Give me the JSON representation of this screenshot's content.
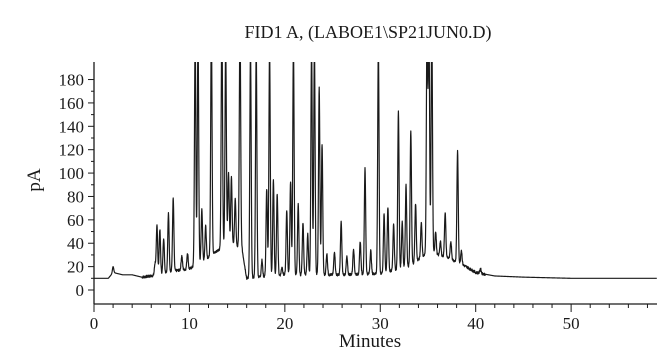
{
  "chart_data": {
    "type": "line",
    "title": "FID1 A, (LABOE1\\SP21JUN0.D)",
    "xlabel": "Minutes",
    "ylabel": "pA",
    "xlim": [
      0,
      59
    ],
    "ylim": [
      0,
      195
    ],
    "x_ticks": [
      0,
      10,
      20,
      30,
      40,
      50
    ],
    "y_ticks": [
      0,
      20,
      40,
      60,
      80,
      100,
      120,
      140,
      160,
      180
    ],
    "grid": false,
    "legend": "none",
    "line_color": "#1a1a1a",
    "series": [
      {
        "baseline": [
          [
            0,
            10
          ],
          [
            1.5,
            10
          ],
          [
            2,
            15
          ],
          [
            3,
            13
          ],
          [
            4,
            13
          ],
          [
            5,
            11
          ],
          [
            6,
            12
          ],
          [
            8,
            16
          ],
          [
            10,
            18
          ],
          [
            12,
            28
          ],
          [
            14,
            40
          ],
          [
            15.5,
            36
          ],
          [
            16,
            10
          ],
          [
            17,
            11
          ],
          [
            20,
            13
          ],
          [
            25,
            13
          ],
          [
            30,
            14
          ],
          [
            33,
            20
          ],
          [
            35,
            32
          ],
          [
            37,
            28
          ],
          [
            39,
            20
          ],
          [
            40,
            15
          ],
          [
            42,
            12
          ],
          [
            45,
            11
          ],
          [
            50,
            10
          ],
          [
            59,
            10
          ]
        ],
        "peaks": [
          [
            2.0,
            5
          ],
          [
            6.4,
            10
          ],
          [
            6.6,
            42
          ],
          [
            6.9,
            38
          ],
          [
            7.3,
            30
          ],
          [
            7.8,
            50
          ],
          [
            8.3,
            62
          ],
          [
            9.2,
            12
          ],
          [
            9.8,
            14
          ],
          [
            10.6,
            195
          ],
          [
            10.9,
            195
          ],
          [
            11.3,
            45
          ],
          [
            11.7,
            28
          ],
          [
            12.3,
            195
          ],
          [
            13.4,
            195
          ],
          [
            13.8,
            170
          ],
          [
            14.1,
            60
          ],
          [
            14.4,
            58
          ],
          [
            14.8,
            40
          ],
          [
            15.3,
            195
          ],
          [
            16.4,
            195
          ],
          [
            17.0,
            195
          ],
          [
            17.6,
            14
          ],
          [
            18.1,
            75
          ],
          [
            18.4,
            195
          ],
          [
            18.8,
            82
          ],
          [
            19.2,
            70
          ],
          [
            19.7,
            7
          ],
          [
            20.2,
            55
          ],
          [
            20.6,
            80
          ],
          [
            20.9,
            195
          ],
          [
            21.4,
            60
          ],
          [
            21.9,
            45
          ],
          [
            22.4,
            35
          ],
          [
            22.8,
            195
          ],
          [
            23.1,
            195
          ],
          [
            23.6,
            160
          ],
          [
            23.9,
            112
          ],
          [
            24.4,
            18
          ],
          [
            25.2,
            20
          ],
          [
            25.9,
            45
          ],
          [
            26.5,
            15
          ],
          [
            27.2,
            22
          ],
          [
            27.9,
            28
          ],
          [
            28.4,
            90
          ],
          [
            29.0,
            20
          ],
          [
            29.8,
            195
          ],
          [
            30.4,
            50
          ],
          [
            30.8,
            55
          ],
          [
            31.4,
            40
          ],
          [
            31.9,
            135
          ],
          [
            32.3,
            40
          ],
          [
            32.7,
            70
          ],
          [
            33.2,
            115
          ],
          [
            33.7,
            50
          ],
          [
            34.3,
            30
          ],
          [
            34.9,
            195
          ],
          [
            35.1,
            195
          ],
          [
            35.4,
            195
          ],
          [
            35.8,
            20
          ],
          [
            36.3,
            12
          ],
          [
            36.8,
            38
          ],
          [
            37.4,
            15
          ],
          [
            38.1,
            95
          ],
          [
            38.5,
            12
          ],
          [
            40.5,
            4
          ]
        ]
      }
    ]
  }
}
